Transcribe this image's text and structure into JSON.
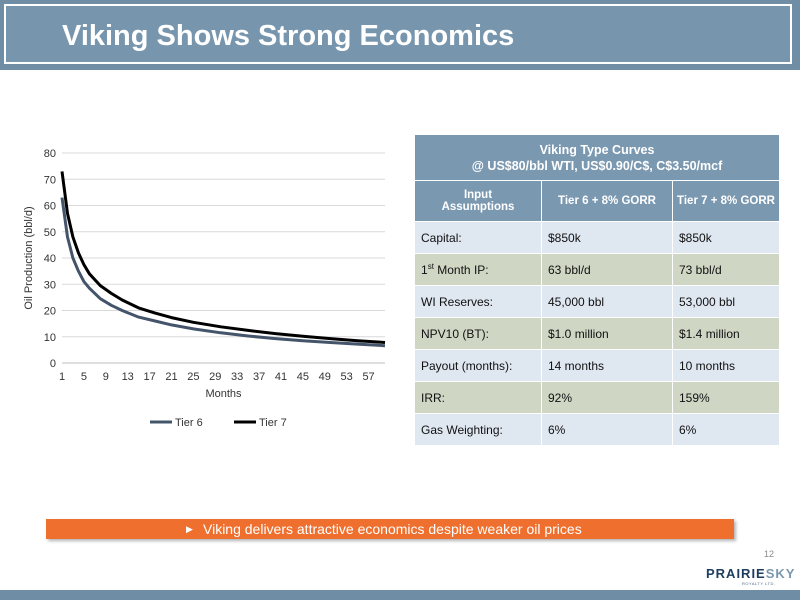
{
  "title": "Viking Shows Strong Economics",
  "chart_data": {
    "type": "line",
    "xlabel": "Months",
    "ylabel": "Oil Production (bbl/d)",
    "ylim": [
      0,
      80
    ],
    "yticks": [
      0,
      10,
      20,
      30,
      40,
      50,
      60,
      70,
      80
    ],
    "xlim": [
      1,
      60
    ],
    "xticks": [
      1,
      5,
      9,
      13,
      17,
      21,
      25,
      29,
      33,
      37,
      41,
      45,
      49,
      53,
      57
    ],
    "grid": true,
    "legend_position": "bottom",
    "x": [
      1,
      2,
      3,
      4,
      5,
      6,
      8,
      10,
      12,
      15,
      18,
      21,
      25,
      30,
      35,
      40,
      45,
      50,
      55,
      60
    ],
    "series": [
      {
        "name": "Tier 6",
        "color": "#44546a",
        "values": [
          63,
          48,
          40,
          35,
          31,
          28.5,
          24.5,
          22,
          20,
          17.5,
          16,
          14.5,
          13,
          11.5,
          10.3,
          9.3,
          8.5,
          7.8,
          7.2,
          6.6
        ]
      },
      {
        "name": "Tier 7",
        "color": "#000000",
        "values": [
          73,
          57,
          48,
          42,
          37.5,
          34,
          29.5,
          26.5,
          24,
          21,
          19,
          17.3,
          15.5,
          13.8,
          12.4,
          11.2,
          10.2,
          9.3,
          8.5,
          7.8
        ]
      }
    ]
  },
  "table": {
    "header_line1": "Viking Type Curves",
    "header_line2": "@ US$80/bbl WTI, US$0.90/C$, C$3.50/mcf",
    "col_input_line1": "Input",
    "col_input_line2": "Assumptions",
    "col_tier6": "Tier 6 + 8% GORR",
    "col_tier7": "Tier 7 + 8% GORR",
    "rows": [
      {
        "label": "Capital:",
        "tier6": "$850k",
        "tier7": "$850k"
      },
      {
        "label_prefix": "1",
        "label_sup": "st",
        "label_suffix": " Month IP:",
        "tier6": "63 bbl/d",
        "tier7": "73 bbl/d"
      },
      {
        "label": "WI Reserves:",
        "tier6": "45,000 bbl",
        "tier7": "53,000 bbl"
      },
      {
        "label": "NPV10 (BT):",
        "tier6": "$1.0 million",
        "tier7": "$1.4 million"
      },
      {
        "label": "Payout (months):",
        "tier6": "14 months",
        "tier7": "10 months"
      },
      {
        "label": "IRR:",
        "tier6": "92%",
        "tier7": "159%"
      },
      {
        "label": "Gas Weighting:",
        "tier6": "6%",
        "tier7": "6%"
      }
    ]
  },
  "callout": "Viking delivers attractive economics despite weaker oil prices",
  "page_number": "12",
  "logo": {
    "part1": "PRAIRIE",
    "part2": "SKY",
    "subtitle": "ROYALTY LTD."
  }
}
